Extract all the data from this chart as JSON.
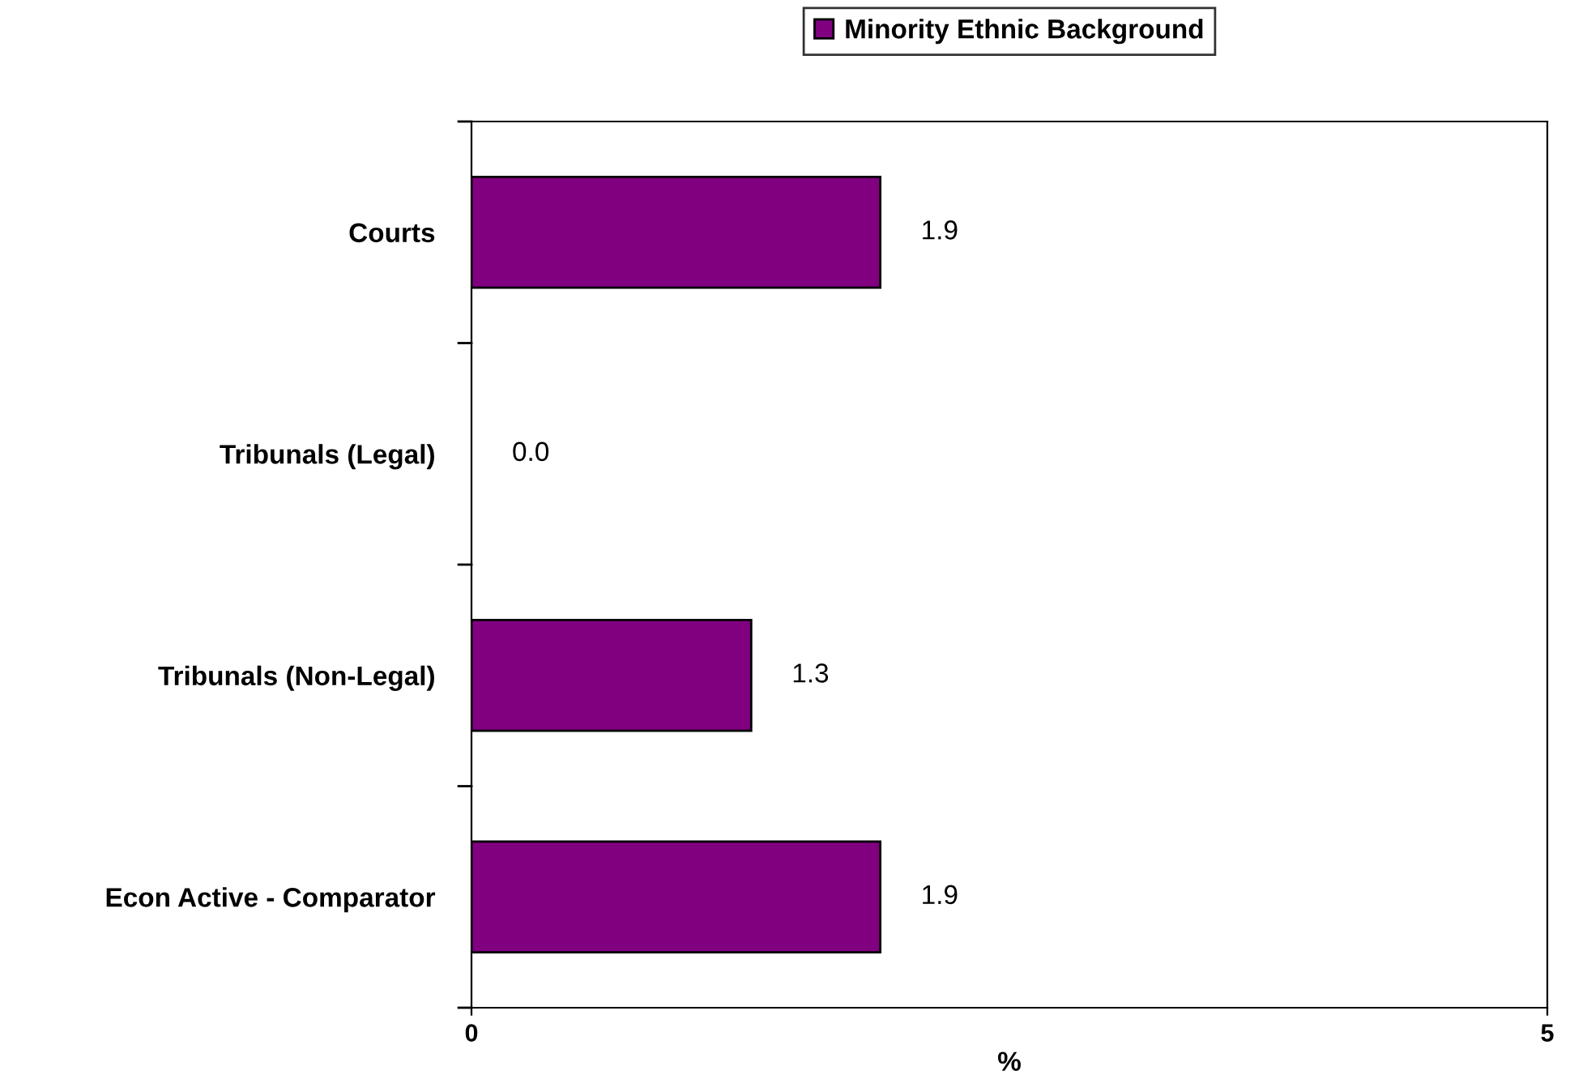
{
  "chart_data": {
    "type": "bar",
    "orientation": "horizontal",
    "xlabel": "%",
    "categories": [
      "Courts",
      "Tribunals (Legal)",
      "Tribunals (Non-Legal)",
      "Econ Active - Comparator"
    ],
    "series": [
      {
        "name": "Minority Ethnic Background",
        "color": "#800080",
        "values": [
          1.9,
          0.0,
          1.3,
          1.9
        ]
      }
    ],
    "value_labels": [
      "1.9",
      "0.0",
      "1.3",
      "1.9"
    ],
    "xlim": [
      0,
      5
    ],
    "xticks": [
      0,
      5
    ],
    "grid": false,
    "legend": "top"
  }
}
